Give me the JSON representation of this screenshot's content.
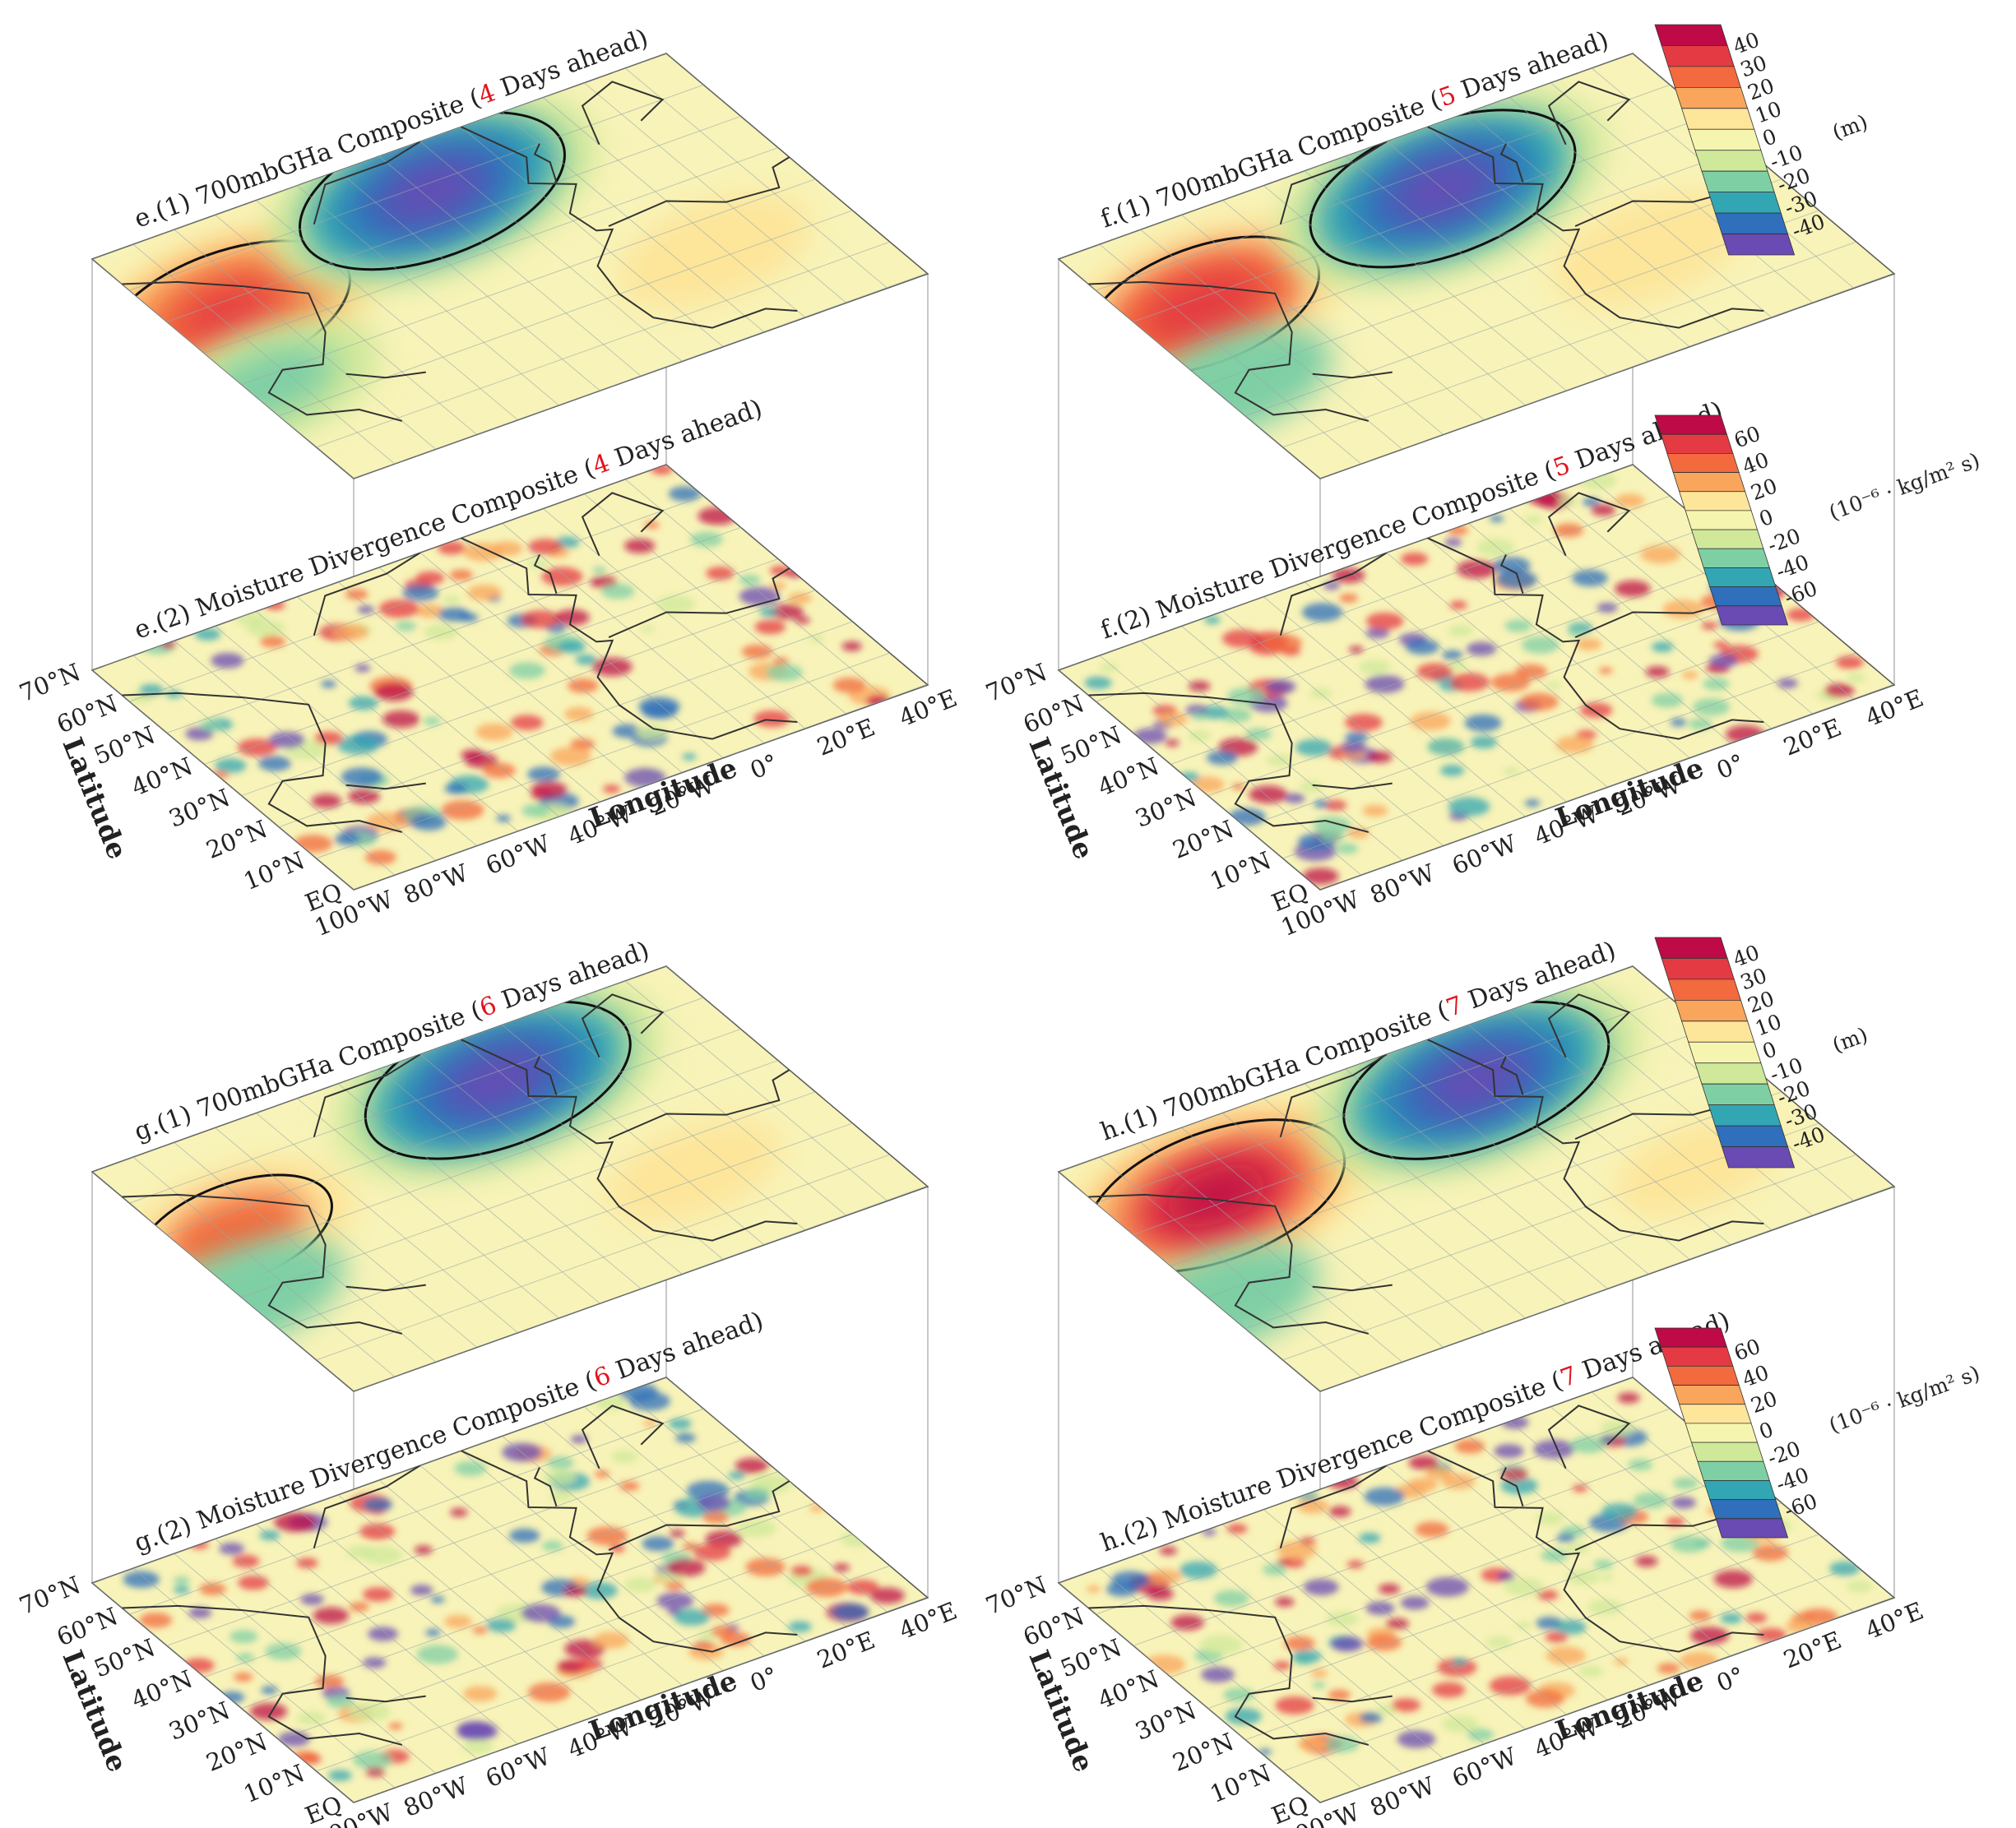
{
  "chart_data": {
    "type": "heatmap",
    "panels": [
      {
        "id": "e",
        "upper": {
          "title": [
            "e.(1) 700mbGHa Composite  (",
            "4",
            " Days ahead)"
          ],
          "field": "700mb geopotential height anomaly",
          "unit": "(m)"
        },
        "lower": {
          "title": [
            "e.(2) Moisture Divergence Composite (",
            "4",
            " Days ahead)"
          ],
          "field": "moisture divergence",
          "unit": "(10⁻⁶ · kg/m² s)"
        },
        "centers": [
          {
            "lon": -88,
            "lat": 47,
            "value": 35
          },
          {
            "lon": -28,
            "lat": 58,
            "value": -40
          },
          {
            "lon": 8,
            "lat": 22,
            "value": 12
          },
          {
            "lon": -95,
            "lat": 28,
            "value": -18
          }
        ]
      },
      {
        "id": "f",
        "upper": {
          "title": [
            "f.(1) 700mbGHa Composite  (",
            "5",
            " Days ahead)"
          ],
          "field": "700mb geopotential height anomaly",
          "unit": "(m)"
        },
        "lower": {
          "title": [
            "f.(2) Moisture Divergence Composite (",
            "5",
            " Days ahead)"
          ],
          "field": "moisture divergence",
          "unit": "(10⁻⁶ · kg/m² s)"
        },
        "centers": [
          {
            "lon": -85,
            "lat": 48,
            "value": 32
          },
          {
            "lon": -20,
            "lat": 55,
            "value": -40
          },
          {
            "lon": 3,
            "lat": 25,
            "value": 12
          },
          {
            "lon": -95,
            "lat": 28,
            "value": -12
          }
        ]
      },
      {
        "id": "g",
        "upper": {
          "title": [
            "g.(1) 700mbGHa Composite  (",
            "6",
            " Days ahead)"
          ],
          "field": "700mb geopotential height anomaly",
          "unit": "(m)"
        },
        "lower": {
          "title": [
            "g.(2) Moisture Divergence Composite (",
            "6",
            " Days ahead)"
          ],
          "field": "moisture divergence",
          "unit": "(10⁻⁶ · kg/m² s)"
        },
        "centers": [
          {
            "lon": -88,
            "lat": 45,
            "value": 22
          },
          {
            "lon": -12,
            "lat": 58,
            "value": -40
          },
          {
            "lon": 3,
            "lat": 22,
            "value": 8
          },
          {
            "lon": -98,
            "lat": 30,
            "value": -12
          }
        ]
      },
      {
        "id": "h",
        "upper": {
          "title": [
            "h.(1) 700mbGHa Composite  (",
            "7",
            " Days ahead)"
          ],
          "field": "700mb geopotential height anomaly",
          "unit": "(m)"
        },
        "lower": {
          "title": [
            "h.(2) Moisture Divergence Composite (",
            "7",
            " Days ahead)"
          ],
          "field": "moisture divergence",
          "unit": "(10⁻⁶ · kg/m² s)"
        },
        "centers": [
          {
            "lon": -78,
            "lat": 52,
            "value": 38
          },
          {
            "lon": -10,
            "lat": 57,
            "value": -40
          },
          {
            "lon": 10,
            "lat": 20,
            "value": 6
          },
          {
            "lon": -98,
            "lat": 28,
            "value": -12
          }
        ]
      }
    ],
    "colorbar_ght": {
      "ticks": [
        "40",
        "30",
        "20",
        "10",
        "0",
        "-10",
        "-20",
        "-30",
        "-40"
      ],
      "unit": "(m)",
      "colors": [
        "#be0a46",
        "#e43a43",
        "#f26a3e",
        "#f9a65c",
        "#fde59a",
        "#f6f5b0",
        "#cfe89a",
        "#7fcfa5",
        "#33a6b3",
        "#2f6fbb",
        "#6a4ab3"
      ]
    },
    "colorbar_md": {
      "ticks": [
        "60",
        "40",
        "20",
        "0",
        "-20",
        "-40",
        "-60"
      ],
      "unit": "(10⁻⁶ · kg/m² s)",
      "colors": [
        "#be0a46",
        "#e43a43",
        "#f26a3e",
        "#f9a65c",
        "#fde59a",
        "#f6f5b0",
        "#cfe89a",
        "#7fcfa5",
        "#33a6b3",
        "#2f6fbb",
        "#6a4ab3"
      ]
    },
    "lat_ticks": [
      "70°N",
      "60°N",
      "50°N",
      "40°N",
      "30°N",
      "20°N",
      "10°N",
      "EQ"
    ],
    "lon_ticks": [
      "100°W",
      "80°W",
      "60°W",
      "40°W",
      "20°W",
      "0°",
      "20°E",
      "40°E"
    ],
    "xlabel": "Longitude",
    "ylabel": "Latitude",
    "xlim": [
      -100,
      40
    ],
    "ylim": [
      0,
      70
    ]
  }
}
